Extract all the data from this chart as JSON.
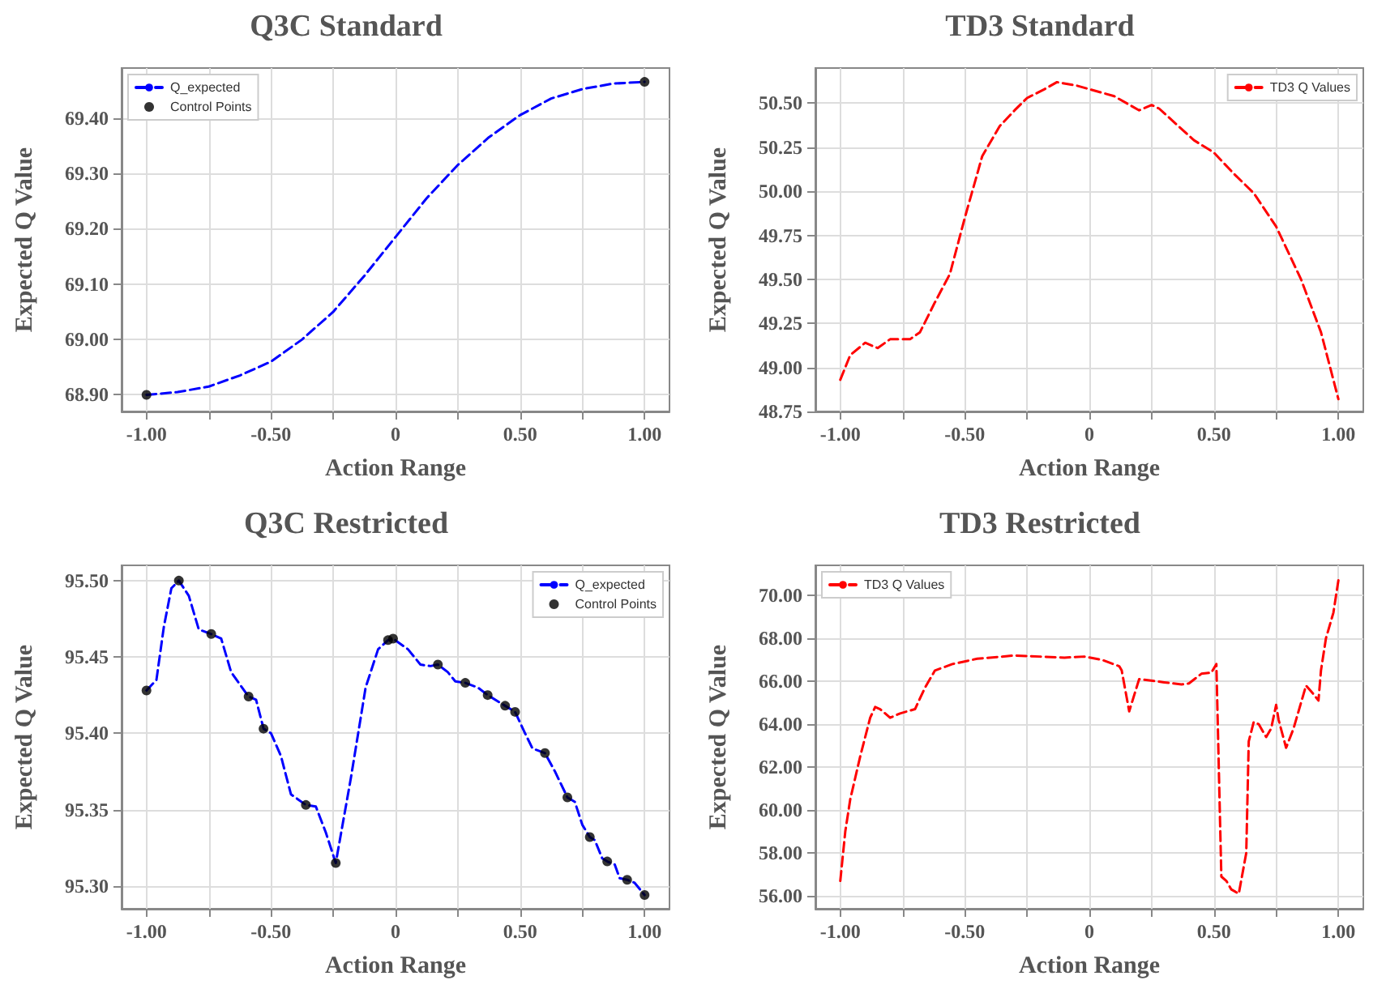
{
  "chart_data": [
    {
      "type": "line",
      "title": "Q3C Standard",
      "xlabel": "Action Range",
      "ylabel": "Expected Q Value",
      "xlim": [
        -1.1,
        1.1
      ],
      "ylim": [
        68.87,
        69.49
      ],
      "xticks": [
        {
          "value": -1,
          "label": "-1.00"
        },
        {
          "value": -0.75,
          "label": null
        },
        {
          "value": -0.5,
          "label": "-0.50"
        },
        {
          "value": -0.25,
          "label": null
        },
        {
          "value": 0,
          "label": "0"
        },
        {
          "value": 0.25,
          "label": null
        },
        {
          "value": 0.5,
          "label": "0.50"
        },
        {
          "value": 0.75,
          "label": null
        },
        {
          "value": 1,
          "label": "1.00"
        }
      ],
      "yticks": [
        {
          "value": 68.9,
          "label": "68.90"
        },
        {
          "value": 69.0,
          "label": "69.00"
        },
        {
          "value": 69.1,
          "label": "69.10"
        },
        {
          "value": 69.2,
          "label": "69.20"
        },
        {
          "value": 69.3,
          "label": "69.30"
        },
        {
          "value": 69.4,
          "label": "69.40"
        }
      ],
      "grid": true,
      "legend": "top left",
      "series": [
        {
          "name": "Q_expected",
          "type": "line",
          "color": "#0000ff",
          "line_style": "dashed",
          "marker": "none",
          "x": [
            -1,
            -0.875,
            -0.75,
            -0.625,
            -0.5,
            -0.375,
            -0.25,
            -0.125,
            0,
            0.125,
            0.25,
            0.375,
            0.5,
            0.625,
            0.75,
            0.875,
            1
          ],
          "values": [
            68.9,
            68.905,
            68.915,
            68.935,
            68.96,
            69.0,
            69.05,
            69.115,
            69.185,
            69.255,
            69.315,
            69.365,
            69.405,
            69.435,
            69.452,
            69.462,
            69.465
          ]
        },
        {
          "name": "Control Points",
          "type": "scatter",
          "color": "#000000",
          "marker": "circle",
          "x": [
            -1,
            1
          ],
          "values": [
            68.9,
            69.465
          ]
        }
      ]
    },
    {
      "type": "line",
      "title": "TD3 Standard",
      "xlabel": "Action Range",
      "ylabel": "Expected Q Value",
      "xlim": [
        -1.1,
        1.1
      ],
      "ylim": [
        48.75,
        50.7
      ],
      "xticks": [
        {
          "value": -1,
          "label": "-1.00"
        },
        {
          "value": -0.75,
          "label": null
        },
        {
          "value": -0.5,
          "label": "-0.50"
        },
        {
          "value": -0.25,
          "label": null
        },
        {
          "value": 0,
          "label": "0"
        },
        {
          "value": 0.25,
          "label": null
        },
        {
          "value": 0.5,
          "label": "0.50"
        },
        {
          "value": 0.75,
          "label": null
        },
        {
          "value": 1,
          "label": "1.00"
        }
      ],
      "yticks": [
        {
          "value": 48.75,
          "label": "48.75"
        },
        {
          "value": 49,
          "label": "49.00"
        },
        {
          "value": 49.25,
          "label": "49.25"
        },
        {
          "value": 49.5,
          "label": "49.50"
        },
        {
          "value": 49.75,
          "label": "49.75"
        },
        {
          "value": 50,
          "label": "50.00"
        },
        {
          "value": 50.25,
          "label": "50.25"
        },
        {
          "value": 50.5,
          "label": "50.50"
        }
      ],
      "grid": true,
      "legend": "top right",
      "series": [
        {
          "name": "TD3 Q Values",
          "type": "line",
          "color": "#ff0000",
          "line_style": "dashed",
          "marker": "none",
          "x": [
            -1,
            -0.96,
            -0.9,
            -0.85,
            -0.8,
            -0.72,
            -0.68,
            -0.62,
            -0.56,
            -0.5,
            -0.43,
            -0.36,
            -0.3,
            -0.25,
            -0.18,
            -0.13,
            -0.05,
            0,
            0.1,
            0.2,
            0.25,
            0.28,
            0.35,
            0.42,
            0.5,
            0.58,
            0.66,
            0.75,
            0.85,
            0.93,
            1
          ],
          "values": [
            48.93,
            49.07,
            49.14,
            49.11,
            49.16,
            49.16,
            49.2,
            49.37,
            49.53,
            49.85,
            50.2,
            50.37,
            50.46,
            50.53,
            50.58,
            50.62,
            50.6,
            50.58,
            50.54,
            50.46,
            50.49,
            50.47,
            50.38,
            50.29,
            50.22,
            50.1,
            49.99,
            49.8,
            49.5,
            49.2,
            48.82
          ]
        }
      ]
    },
    {
      "type": "line",
      "title": "Q3C Restricted",
      "xlabel": "Action Range",
      "ylabel": "Expected Q Value",
      "xlim": [
        -1.1,
        1.1
      ],
      "ylim": [
        95.285,
        95.51
      ],
      "xticks": [
        {
          "value": -1,
          "label": "-1.00"
        },
        {
          "value": -0.75,
          "label": null
        },
        {
          "value": -0.5,
          "label": "-0.50"
        },
        {
          "value": -0.25,
          "label": null
        },
        {
          "value": 0,
          "label": "0"
        },
        {
          "value": 0.25,
          "label": null
        },
        {
          "value": 0.5,
          "label": "0.50"
        },
        {
          "value": 0.75,
          "label": null
        },
        {
          "value": 1,
          "label": "1.00"
        }
      ],
      "yticks": [
        {
          "value": 95.3,
          "label": "95.30"
        },
        {
          "value": 95.35,
          "label": "95.35"
        },
        {
          "value": 95.4,
          "label": "95.40"
        },
        {
          "value": 95.45,
          "label": "95.45"
        },
        {
          "value": 95.5,
          "label": "95.50"
        }
      ],
      "grid": true,
      "legend": "top right",
      "series": [
        {
          "name": "Q_expected",
          "type": "line",
          "color": "#0000ff",
          "line_style": "dashed",
          "marker": "none",
          "x": [
            -1,
            -0.96,
            -0.93,
            -0.9,
            -0.87,
            -0.83,
            -0.79,
            -0.74,
            -0.7,
            -0.66,
            -0.59,
            -0.56,
            -0.53,
            -0.5,
            -0.46,
            -0.42,
            -0.36,
            -0.32,
            -0.28,
            -0.24,
            -0.18,
            -0.12,
            -0.07,
            -0.03,
            -0.01,
            0.05,
            0.1,
            0.14,
            0.17,
            0.21,
            0.24,
            0.28,
            0.33,
            0.37,
            0.44,
            0.48,
            0.52,
            0.55,
            0.6,
            0.64,
            0.69,
            0.72,
            0.75,
            0.78,
            0.8,
            0.83,
            0.85,
            0.88,
            0.9,
            0.93,
            0.96,
            1
          ],
          "values": [
            95.428,
            95.435,
            95.47,
            95.495,
            95.5,
            95.49,
            95.468,
            95.465,
            95.462,
            95.44,
            95.424,
            95.422,
            95.403,
            95.4,
            95.385,
            95.36,
            95.353,
            95.352,
            95.335,
            95.315,
            95.37,
            95.43,
            95.455,
            95.461,
            95.462,
            95.455,
            95.445,
            95.444,
            95.445,
            95.44,
            95.434,
            95.433,
            95.43,
            95.425,
            95.418,
            95.414,
            95.4,
            95.39,
            95.387,
            95.375,
            95.358,
            95.355,
            95.34,
            95.332,
            95.33,
            95.318,
            95.316,
            95.314,
            95.305,
            95.304,
            95.302,
            95.294
          ]
        },
        {
          "name": "Control Points",
          "type": "scatter",
          "color": "#000000",
          "marker": "circle",
          "x": [
            -1,
            -0.87,
            -0.74,
            -0.59,
            -0.53,
            -0.36,
            -0.24,
            -0.03,
            -0.01,
            0.17,
            0.28,
            0.37,
            0.44,
            0.48,
            0.6,
            0.69,
            0.78,
            0.85,
            0.93,
            1
          ],
          "values": [
            95.428,
            95.5,
            95.465,
            95.424,
            95.403,
            95.353,
            95.315,
            95.461,
            95.462,
            95.445,
            95.433,
            95.425,
            95.418,
            95.414,
            95.387,
            95.358,
            95.332,
            95.316,
            95.304,
            95.294
          ]
        }
      ]
    },
    {
      "type": "line",
      "title": "TD3 Restricted",
      "xlabel": "Action Range",
      "ylabel": "Expected Q Value",
      "xlim": [
        -1.1,
        1.1
      ],
      "ylim": [
        55.4,
        71.4
      ],
      "xticks": [
        {
          "value": -1,
          "label": "-1.00"
        },
        {
          "value": -0.75,
          "label": null
        },
        {
          "value": -0.5,
          "label": "-0.50"
        },
        {
          "value": -0.25,
          "label": null
        },
        {
          "value": 0,
          "label": "0"
        },
        {
          "value": 0.25,
          "label": null
        },
        {
          "value": 0.5,
          "label": "0.50"
        },
        {
          "value": 0.75,
          "label": null
        },
        {
          "value": 1,
          "label": "1.00"
        }
      ],
      "yticks": [
        {
          "value": 56,
          "label": "56.00"
        },
        {
          "value": 58,
          "label": "58.00"
        },
        {
          "value": 60,
          "label": "60.00"
        },
        {
          "value": 62,
          "label": "62.00"
        },
        {
          "value": 64,
          "label": "64.00"
        },
        {
          "value": 66,
          "label": "66.00"
        },
        {
          "value": 68,
          "label": "68.00"
        },
        {
          "value": 70,
          "label": "70.00"
        }
      ],
      "grid": true,
      "legend": "top left",
      "series": [
        {
          "name": "TD3 Q Values",
          "type": "line",
          "color": "#ff0000",
          "line_style": "dashed",
          "marker": "none",
          "x": [
            -1,
            -0.98,
            -0.96,
            -0.92,
            -0.88,
            -0.86,
            -0.84,
            -0.8,
            -0.76,
            -0.7,
            -0.66,
            -0.62,
            -0.55,
            -0.45,
            -0.3,
            -0.2,
            -0.1,
            -0.02,
            0.05,
            0.12,
            0.13,
            0.16,
            0.2,
            0.3,
            0.37,
            0.4,
            0.45,
            0.49,
            0.51,
            0.53,
            0.55,
            0.57,
            0.6,
            0.63,
            0.64,
            0.66,
            0.68,
            0.71,
            0.73,
            0.75,
            0.76,
            0.79,
            0.82,
            0.85,
            0.87,
            0.9,
            0.92,
            0.93,
            0.95,
            0.98,
            1
          ],
          "values": [
            56.7,
            59.0,
            60.5,
            62.5,
            64.3,
            64.8,
            64.7,
            64.3,
            64.5,
            64.7,
            65.7,
            66.5,
            66.8,
            67.05,
            67.2,
            67.15,
            67.1,
            67.15,
            67.0,
            66.7,
            66.5,
            64.6,
            66.1,
            65.95,
            65.85,
            65.9,
            66.35,
            66.4,
            66.8,
            56.9,
            56.7,
            56.3,
            56.1,
            58.0,
            63.2,
            64.1,
            64.0,
            63.4,
            63.8,
            64.9,
            64.2,
            62.9,
            63.8,
            65.0,
            65.8,
            65.4,
            65.1,
            66.5,
            68.0,
            69.2,
            70.7
          ]
        }
      ]
    }
  ]
}
